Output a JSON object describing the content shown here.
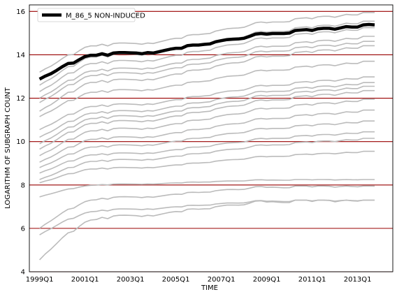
{
  "chart_data": {
    "type": "line",
    "title": "",
    "xlabel": "TIME",
    "ylabel": "LOGARITHM OF SUBGRAPH COUNT",
    "xlim": [
      1998.55,
      2014.55
    ],
    "ylim": [
      4,
      16.3
    ],
    "yticks": [
      4,
      6,
      8,
      10,
      12,
      14,
      16
    ],
    "xticks": [
      {
        "value": 1999.0,
        "label": "1999Q1"
      },
      {
        "value": 2001.0,
        "label": "2001Q1"
      },
      {
        "value": 2003.0,
        "label": "2003Q1"
      },
      {
        "value": 2005.0,
        "label": "2005Q1"
      },
      {
        "value": 2007.0,
        "label": "2007Q1"
      },
      {
        "value": 2009.0,
        "label": "2009Q1"
      },
      {
        "value": 2011.0,
        "label": "2011Q1"
      },
      {
        "value": 2013.0,
        "label": "2013Q1"
      }
    ],
    "grid": "horizontal",
    "legend": "top-left",
    "colors": {
      "highlight": "#000000",
      "background_series": "#bbbbbb",
      "gridline": "#990000"
    },
    "x": [
      1999.0,
      1999.25,
      1999.5,
      1999.75,
      2000.0,
      2000.25,
      2000.5,
      2000.75,
      2001.0,
      2001.25,
      2001.5,
      2001.75,
      2002.0,
      2002.25,
      2002.5,
      2002.75,
      2003.0,
      2003.25,
      2003.5,
      2003.75,
      2004.0,
      2004.25,
      2004.5,
      2004.75,
      2005.0,
      2005.25,
      2005.5,
      2005.75,
      2006.0,
      2006.25,
      2006.5,
      2006.75,
      2007.0,
      2007.25,
      2007.5,
      2007.75,
      2008.0,
      2008.25,
      2008.5,
      2008.75,
      2009.0,
      2009.25,
      2009.5,
      2009.75,
      2010.0,
      2010.25,
      2010.5,
      2010.75,
      2011.0,
      2011.25,
      2011.5,
      2011.75,
      2012.0,
      2012.25,
      2012.5,
      2012.75,
      2013.0,
      2013.25,
      2013.5,
      2013.75
    ],
    "highlight_series": {
      "name": "M_86_5 NON-INDUCED",
      "values": [
        12.88,
        13.02,
        13.13,
        13.28,
        13.45,
        13.6,
        13.62,
        13.78,
        13.92,
        13.98,
        13.98,
        14.05,
        13.98,
        14.08,
        14.1,
        14.1,
        14.09,
        14.08,
        14.05,
        14.1,
        14.08,
        14.14,
        14.2,
        14.26,
        14.3,
        14.3,
        14.42,
        14.45,
        14.45,
        14.48,
        14.5,
        14.6,
        14.65,
        14.7,
        14.72,
        14.73,
        14.76,
        14.85,
        14.95,
        14.98,
        14.95,
        14.98,
        14.98,
        14.98,
        15.0,
        15.12,
        15.14,
        15.16,
        15.12,
        15.2,
        15.22,
        15.22,
        15.18,
        15.24,
        15.3,
        15.28,
        15.28,
        15.38,
        15.4,
        15.38
      ]
    },
    "background_series": [
      {
        "start": 13.2,
        "end": 15.95
      },
      {
        "start": 12.6,
        "end": 15.55
      },
      {
        "start": 12.3,
        "end": 15.25
      },
      {
        "start": 12.0,
        "end": 14.85
      },
      {
        "start": 11.8,
        "end": 14.62
      },
      {
        "start": 11.4,
        "end": 14.42
      },
      {
        "start": 11.15,
        "end": 13.7
      },
      {
        "start": 10.55,
        "end": 12.98
      },
      {
        "start": 10.2,
        "end": 12.72
      },
      {
        "start": 9.9,
        "end": 12.55
      },
      {
        "start": 9.65,
        "end": 12.35
      },
      {
        "start": 9.35,
        "end": 11.95
      },
      {
        "start": 9.05,
        "end": 11.45
      },
      {
        "start": 8.8,
        "end": 10.95
      },
      {
        "start": 8.55,
        "end": 10.45
      },
      {
        "start": 8.25,
        "end": 10.15
      },
      {
        "start": 8.1,
        "end": 9.55
      },
      {
        "start": 7.45,
        "end": 8.25
      },
      {
        "start": 6.0,
        "end": 7.95
      },
      {
        "start": 5.7,
        "end": 7.3
      },
      {
        "start": 4.55,
        "end": 7.3
      }
    ]
  }
}
